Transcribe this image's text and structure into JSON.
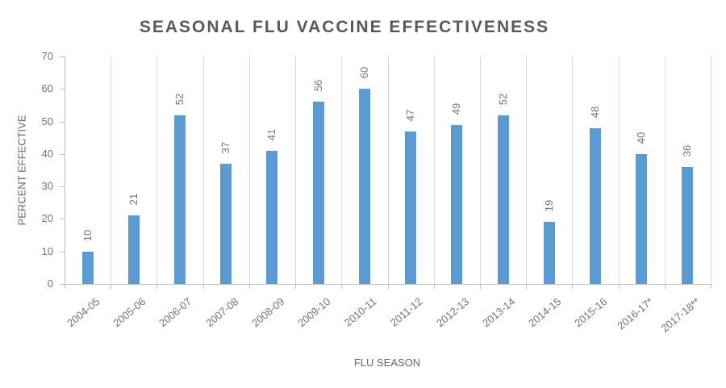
{
  "chart_data": {
    "type": "bar",
    "title": "SEASONAL FLU VACCINE EFFECTIVENESS",
    "xlabel": "FLU SEASON",
    "ylabel": "PERCENT EFFECTIVE",
    "categories": [
      "2004-05",
      "2005-06",
      "2006-07",
      "2007-08",
      "2008-09",
      "2009-10",
      "2010-11",
      "2011-12",
      "2012-13",
      "2013-14",
      "2014-15",
      "2015-16",
      "2016-17*",
      "2017-18**"
    ],
    "values": [
      10,
      21,
      52,
      37,
      41,
      56,
      60,
      47,
      49,
      52,
      19,
      48,
      40,
      36
    ],
    "ylim": [
      0,
      70
    ],
    "yticks": [
      0,
      10,
      20,
      30,
      40,
      50,
      60,
      70
    ],
    "grid": "vertical-only",
    "legend": "none",
    "data_labels_style": "rotated-90-above-bars",
    "bar_color": "#5B9BD5",
    "gridline_color": "#D9D9D9",
    "axis_color": "#BFBFBF",
    "title_color": "#595959",
    "tick_label_color": "#737373",
    "value_label_color": "#757575"
  }
}
